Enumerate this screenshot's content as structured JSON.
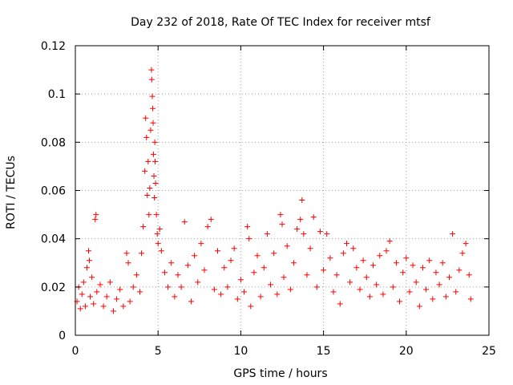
{
  "chart_data": {
    "type": "scatter",
    "title": "Day 232 of 2018, Rate Of TEC Index for receiver mtsf",
    "xlabel": "GPS time / hours",
    "ylabel": "ROTI / TECUs",
    "xlim": [
      0,
      25
    ],
    "ylim": [
      0,
      0.12
    ],
    "x_ticks": [
      0,
      5,
      10,
      15,
      20,
      25
    ],
    "x_tick_labels": [
      "0",
      "5",
      "10",
      "15",
      "20",
      "25"
    ],
    "y_ticks": [
      0,
      0.02,
      0.04,
      0.06,
      0.08,
      0.1,
      0.12
    ],
    "y_tick_labels": [
      "0",
      "0.02",
      "0.04",
      "0.06",
      "0.08",
      "0.1",
      "0.12"
    ],
    "grid": true,
    "marker": "+",
    "series": [
      {
        "name": "ROTI",
        "color": "#ff0000",
        "points": [
          [
            0.1,
            0.014
          ],
          [
            0.2,
            0.02
          ],
          [
            0.3,
            0.011
          ],
          [
            0.4,
            0.017
          ],
          [
            0.5,
            0.022
          ],
          [
            0.6,
            0.012
          ],
          [
            0.7,
            0.028
          ],
          [
            0.8,
            0.035
          ],
          [
            0.85,
            0.031
          ],
          [
            0.9,
            0.016
          ],
          [
            1.0,
            0.024
          ],
          [
            1.1,
            0.013
          ],
          [
            1.2,
            0.048
          ],
          [
            1.25,
            0.05
          ],
          [
            1.3,
            0.018
          ],
          [
            1.5,
            0.021
          ],
          [
            1.7,
            0.012
          ],
          [
            1.9,
            0.016
          ],
          [
            2.1,
            0.022
          ],
          [
            2.3,
            0.01
          ],
          [
            2.5,
            0.015
          ],
          [
            2.7,
            0.019
          ],
          [
            2.9,
            0.012
          ],
          [
            3.1,
            0.034
          ],
          [
            3.2,
            0.03
          ],
          [
            3.3,
            0.014
          ],
          [
            3.5,
            0.02
          ],
          [
            3.7,
            0.025
          ],
          [
            3.9,
            0.018
          ],
          [
            4.0,
            0.034
          ],
          [
            4.1,
            0.045
          ],
          [
            4.2,
            0.068
          ],
          [
            4.25,
            0.09
          ],
          [
            4.3,
            0.082
          ],
          [
            4.35,
            0.058
          ],
          [
            4.4,
            0.072
          ],
          [
            4.45,
            0.05
          ],
          [
            4.5,
            0.061
          ],
          [
            4.55,
            0.085
          ],
          [
            4.6,
            0.11
          ],
          [
            4.62,
            0.106
          ],
          [
            4.65,
            0.099
          ],
          [
            4.68,
            0.094
          ],
          [
            4.7,
            0.088
          ],
          [
            4.72,
            0.075
          ],
          [
            4.75,
            0.066
          ],
          [
            4.78,
            0.057
          ],
          [
            4.8,
            0.08
          ],
          [
            4.82,
            0.072
          ],
          [
            4.85,
            0.063
          ],
          [
            4.9,
            0.05
          ],
          [
            4.95,
            0.042
          ],
          [
            5.0,
            0.038
          ],
          [
            5.1,
            0.044
          ],
          [
            5.2,
            0.035
          ],
          [
            5.4,
            0.026
          ],
          [
            5.6,
            0.02
          ],
          [
            5.8,
            0.03
          ],
          [
            6.0,
            0.016
          ],
          [
            6.2,
            0.025
          ],
          [
            6.4,
            0.02
          ],
          [
            6.6,
            0.047
          ],
          [
            6.8,
            0.029
          ],
          [
            7.0,
            0.014
          ],
          [
            7.2,
            0.033
          ],
          [
            7.4,
            0.022
          ],
          [
            7.6,
            0.038
          ],
          [
            7.8,
            0.027
          ],
          [
            8.0,
            0.045
          ],
          [
            8.2,
            0.048
          ],
          [
            8.4,
            0.019
          ],
          [
            8.6,
            0.035
          ],
          [
            8.8,
            0.017
          ],
          [
            9.0,
            0.028
          ],
          [
            9.2,
            0.02
          ],
          [
            9.4,
            0.031
          ],
          [
            9.6,
            0.036
          ],
          [
            9.8,
            0.015
          ],
          [
            10.0,
            0.023
          ],
          [
            10.2,
            0.018
          ],
          [
            10.4,
            0.045
          ],
          [
            10.5,
            0.04
          ],
          [
            10.6,
            0.012
          ],
          [
            10.8,
            0.026
          ],
          [
            11.0,
            0.033
          ],
          [
            11.2,
            0.016
          ],
          [
            11.4,
            0.028
          ],
          [
            11.6,
            0.042
          ],
          [
            11.8,
            0.021
          ],
          [
            12.0,
            0.034
          ],
          [
            12.2,
            0.017
          ],
          [
            12.4,
            0.05
          ],
          [
            12.5,
            0.046
          ],
          [
            12.6,
            0.024
          ],
          [
            12.8,
            0.037
          ],
          [
            13.0,
            0.019
          ],
          [
            13.2,
            0.03
          ],
          [
            13.4,
            0.044
          ],
          [
            13.6,
            0.048
          ],
          [
            13.7,
            0.056
          ],
          [
            13.8,
            0.042
          ],
          [
            14.0,
            0.025
          ],
          [
            14.2,
            0.036
          ],
          [
            14.4,
            0.049
          ],
          [
            14.6,
            0.02
          ],
          [
            14.8,
            0.043
          ],
          [
            15.0,
            0.027
          ],
          [
            15.2,
            0.042
          ],
          [
            15.4,
            0.032
          ],
          [
            15.6,
            0.018
          ],
          [
            15.8,
            0.025
          ],
          [
            16.0,
            0.013
          ],
          [
            16.2,
            0.034
          ],
          [
            16.4,
            0.038
          ],
          [
            16.6,
            0.022
          ],
          [
            16.8,
            0.036
          ],
          [
            17.0,
            0.028
          ],
          [
            17.2,
            0.019
          ],
          [
            17.4,
            0.031
          ],
          [
            17.6,
            0.024
          ],
          [
            17.8,
            0.016
          ],
          [
            18.0,
            0.029
          ],
          [
            18.2,
            0.021
          ],
          [
            18.4,
            0.033
          ],
          [
            18.6,
            0.017
          ],
          [
            18.8,
            0.035
          ],
          [
            19.0,
            0.039
          ],
          [
            19.2,
            0.02
          ],
          [
            19.4,
            0.03
          ],
          [
            19.6,
            0.014
          ],
          [
            19.8,
            0.026
          ],
          [
            20.0,
            0.032
          ],
          [
            20.2,
            0.018
          ],
          [
            20.4,
            0.029
          ],
          [
            20.6,
            0.022
          ],
          [
            20.8,
            0.012
          ],
          [
            21.0,
            0.028
          ],
          [
            21.2,
            0.019
          ],
          [
            21.4,
            0.031
          ],
          [
            21.6,
            0.015
          ],
          [
            21.8,
            0.026
          ],
          [
            22.0,
            0.021
          ],
          [
            22.2,
            0.03
          ],
          [
            22.4,
            0.016
          ],
          [
            22.6,
            0.024
          ],
          [
            22.8,
            0.042
          ],
          [
            23.0,
            0.018
          ],
          [
            23.2,
            0.027
          ],
          [
            23.4,
            0.034
          ],
          [
            23.6,
            0.038
          ],
          [
            23.8,
            0.025
          ],
          [
            23.9,
            0.015
          ]
        ]
      }
    ]
  }
}
